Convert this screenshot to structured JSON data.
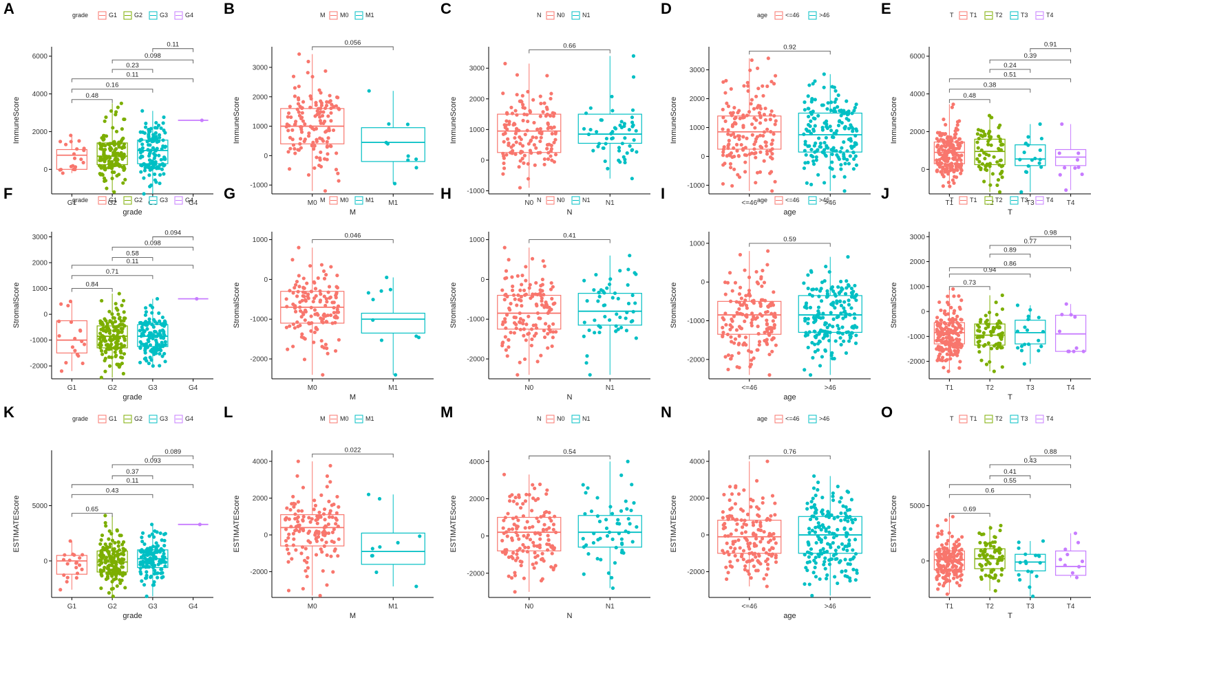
{
  "figure": {
    "colors": {
      "red": "#F8766D",
      "olive": "#7CAE00",
      "teal": "#00BFC4",
      "purple": "#C77CFF",
      "axis": "#000000",
      "bracket": "#555555"
    }
  },
  "chart_data": [
    {
      "letter": "A",
      "type": "boxplot",
      "xlabel": "grade",
      "ylabel": "ImmuneScore",
      "legend_title": "grade",
      "categories": [
        "G1",
        "G2",
        "G3",
        "G4"
      ],
      "colors": [
        "#F8766D",
        "#7CAE00",
        "#00BFC4",
        "#C77CFF"
      ],
      "ylim": [
        -1300,
        6500
      ],
      "yticks": [
        0,
        2000,
        4000,
        6000
      ],
      "boxes": [
        {
          "min": -200,
          "q1": 0,
          "median": 750,
          "q3": 1050,
          "max": 1800,
          "n": 20
        },
        {
          "min": -1200,
          "q1": 250,
          "median": 700,
          "q3": 1400,
          "max": 3500,
          "n": 150
        },
        {
          "min": -1300,
          "q1": 300,
          "median": 1000,
          "q3": 1550,
          "max": 3100,
          "n": 130
        },
        {
          "min": 2600,
          "q1": 2600,
          "median": 2600,
          "q3": 2600,
          "max": 2600,
          "n": 1
        }
      ],
      "comparisons": [
        {
          "from": 0,
          "to": 1,
          "p": "0.48",
          "y": 3700
        },
        {
          "from": 0,
          "to": 2,
          "p": "0.16",
          "y": 4250
        },
        {
          "from": 0,
          "to": 3,
          "p": "0.11",
          "y": 4800
        },
        {
          "from": 1,
          "to": 2,
          "p": "0.23",
          "y": 5300
        },
        {
          "from": 1,
          "to": 3,
          "p": "0.098",
          "y": 5800
        },
        {
          "from": 2,
          "to": 3,
          "p": "0.11",
          "y": 6400
        }
      ]
    },
    {
      "letter": "B",
      "type": "boxplot",
      "xlabel": "M",
      "ylabel": "ImmuneScore",
      "legend_title": "M",
      "categories": [
        "M0",
        "M1"
      ],
      "colors": [
        "#F8766D",
        "#00BFC4"
      ],
      "ylim": [
        -1300,
        3700
      ],
      "yticks": [
        -1000,
        0,
        1000,
        2000,
        3000
      ],
      "boxes": [
        {
          "min": -1200,
          "q1": 400,
          "median": 1000,
          "q3": 1600,
          "max": 3450,
          "n": 140
        },
        {
          "min": -950,
          "q1": -200,
          "median": 450,
          "q3": 950,
          "max": 2200,
          "n": 10
        }
      ],
      "comparisons": [
        {
          "from": 0,
          "to": 1,
          "p": "0.056",
          "y": 3700
        }
      ]
    },
    {
      "letter": "C",
      "type": "boxplot",
      "xlabel": "N",
      "ylabel": "ImmuneScore",
      "legend_title": "N",
      "categories": [
        "N0",
        "N1"
      ],
      "colors": [
        "#F8766D",
        "#00BFC4"
      ],
      "ylim": [
        -1100,
        3700
      ],
      "yticks": [
        -1000,
        0,
        1000,
        2000,
        3000
      ],
      "boxes": [
        {
          "min": -900,
          "q1": 250,
          "median": 950,
          "q3": 1500,
          "max": 3150,
          "n": 140
        },
        {
          "min": -600,
          "q1": 550,
          "median": 850,
          "q3": 1500,
          "max": 3400,
          "n": 55
        }
      ],
      "comparisons": [
        {
          "from": 0,
          "to": 1,
          "p": "0.66",
          "y": 3600
        }
      ]
    },
    {
      "letter": "D",
      "type": "boxplot",
      "xlabel": "age",
      "ylabel": "ImmuneScore",
      "legend_title": "age",
      "categories": [
        "<=46",
        ">46"
      ],
      "colors": [
        "#F8766D",
        "#00BFC4"
      ],
      "ylim": [
        -1300,
        3800
      ],
      "yticks": [
        -1000,
        0,
        1000,
        2000,
        3000
      ],
      "boxes": [
        {
          "min": -1200,
          "q1": 250,
          "median": 850,
          "q3": 1400,
          "max": 3400,
          "n": 160
        },
        {
          "min": -1200,
          "q1": 150,
          "median": 750,
          "q3": 1500,
          "max": 2850,
          "n": 180
        }
      ],
      "comparisons": [
        {
          "from": 0,
          "to": 1,
          "p": "0.92",
          "y": 3650
        }
      ]
    },
    {
      "letter": "E",
      "type": "boxplot",
      "xlabel": "T",
      "ylabel": "ImmuneScore",
      "legend_title": "T",
      "categories": [
        "T1",
        "T2",
        "T3",
        "T4"
      ],
      "colors": [
        "#F8766D",
        "#7CAE00",
        "#00BFC4",
        "#C77CFF"
      ],
      "ylim": [
        -1300,
        6500
      ],
      "yticks": [
        0,
        2000,
        4000,
        6000
      ],
      "boxes": [
        {
          "min": -900,
          "q1": 300,
          "median": 900,
          "q3": 1450,
          "max": 3450,
          "n": 180
        },
        {
          "min": -1200,
          "q1": 250,
          "median": 950,
          "q3": 1600,
          "max": 2850,
          "n": 70
        },
        {
          "min": -1200,
          "q1": 200,
          "median": 550,
          "q3": 1300,
          "max": 2400,
          "n": 18
        },
        {
          "min": -1100,
          "q1": 200,
          "median": 650,
          "q3": 1050,
          "max": 2400,
          "n": 10
        }
      ],
      "comparisons": [
        {
          "from": 0,
          "to": 1,
          "p": "0.48",
          "y": 3700
        },
        {
          "from": 0,
          "to": 2,
          "p": "0.38",
          "y": 4250
        },
        {
          "from": 0,
          "to": 3,
          "p": "0.51",
          "y": 4800
        },
        {
          "from": 1,
          "to": 2,
          "p": "0.24",
          "y": 5300
        },
        {
          "from": 1,
          "to": 3,
          "p": "0.39",
          "y": 5800
        },
        {
          "from": 2,
          "to": 3,
          "p": "0.91",
          "y": 6400
        }
      ]
    },
    {
      "letter": "F",
      "type": "boxplot",
      "xlabel": "grade",
      "ylabel": "StromalScore",
      "legend_title": "grade",
      "categories": [
        "G1",
        "G2",
        "G3",
        "G4"
      ],
      "colors": [
        "#F8766D",
        "#7CAE00",
        "#00BFC4",
        "#C77CFF"
      ],
      "ylim": [
        -2500,
        3200
      ],
      "yticks": [
        -2000,
        -1000,
        0,
        1000,
        2000,
        3000
      ],
      "boxes": [
        {
          "min": -2200,
          "q1": -1500,
          "median": -1000,
          "q3": -250,
          "max": 500,
          "n": 18
        },
        {
          "min": -2450,
          "q1": -1300,
          "median": -850,
          "q3": -450,
          "max": 800,
          "n": 150
        },
        {
          "min": -2000,
          "q1": -1250,
          "median": -850,
          "q3": -400,
          "max": 600,
          "n": 130
        },
        {
          "min": 600,
          "q1": 600,
          "median": 600,
          "q3": 600,
          "max": 600,
          "n": 1
        }
      ],
      "comparisons": [
        {
          "from": 0,
          "to": 1,
          "p": "0.84",
          "y": 1000
        },
        {
          "from": 0,
          "to": 2,
          "p": "0.71",
          "y": 1500
        },
        {
          "from": 0,
          "to": 3,
          "p": "0.11",
          "y": 1900
        },
        {
          "from": 1,
          "to": 2,
          "p": "0.58",
          "y": 2200
        },
        {
          "from": 1,
          "to": 3,
          "p": "0.098",
          "y": 2600
        },
        {
          "from": 2,
          "to": 3,
          "p": "0.094",
          "y": 3000
        }
      ]
    },
    {
      "letter": "G",
      "type": "boxplot",
      "xlabel": "M",
      "ylabel": "StromalScore",
      "legend_title": "M",
      "categories": [
        "M0",
        "M1"
      ],
      "colors": [
        "#F8766D",
        "#00BFC4"
      ],
      "ylim": [
        -2500,
        1200
      ],
      "yticks": [
        -2000,
        -1000,
        0,
        1000
      ],
      "boxes": [
        {
          "min": -2400,
          "q1": -1100,
          "median": -700,
          "q3": -300,
          "max": 800,
          "n": 140
        },
        {
          "min": -2400,
          "q1": -1350,
          "median": -1000,
          "q3": -850,
          "max": 50,
          "n": 10
        }
      ],
      "comparisons": [
        {
          "from": 0,
          "to": 1,
          "p": "0.046",
          "y": 1000
        }
      ]
    },
    {
      "letter": "H",
      "type": "boxplot",
      "xlabel": "N",
      "ylabel": "StromalScore",
      "legend_title": "N",
      "categories": [
        "N0",
        "N1"
      ],
      "colors": [
        "#F8766D",
        "#00BFC4"
      ],
      "ylim": [
        -2500,
        1200
      ],
      "yticks": [
        -2000,
        -1000,
        0,
        1000
      ],
      "boxes": [
        {
          "min": -2400,
          "q1": -1250,
          "median": -850,
          "q3": -400,
          "max": 800,
          "n": 140
        },
        {
          "min": -2400,
          "q1": -1150,
          "median": -800,
          "q3": -350,
          "max": 600,
          "n": 55
        }
      ],
      "comparisons": [
        {
          "from": 0,
          "to": 1,
          "p": "0.41",
          "y": 1000
        }
      ]
    },
    {
      "letter": "I",
      "type": "boxplot",
      "xlabel": "age",
      "ylabel": "StromalScore",
      "legend_title": "age",
      "categories": [
        "<=46",
        ">46"
      ],
      "colors": [
        "#F8766D",
        "#00BFC4"
      ],
      "ylim": [
        -2500,
        1300
      ],
      "yticks": [
        -2000,
        -1000,
        0,
        1000
      ],
      "boxes": [
        {
          "min": -2400,
          "q1": -1350,
          "median": -850,
          "q3": -500,
          "max": 800,
          "n": 160
        },
        {
          "min": -2400,
          "q1": -1300,
          "median": -850,
          "q3": -350,
          "max": 650,
          "n": 180
        }
      ],
      "comparisons": [
        {
          "from": 0,
          "to": 1,
          "p": "0.59",
          "y": 1000
        }
      ]
    },
    {
      "letter": "J",
      "type": "boxplot",
      "xlabel": "T",
      "ylabel": "StromalScore",
      "legend_title": "T",
      "categories": [
        "T1",
        "T2",
        "T3",
        "T4"
      ],
      "colors": [
        "#F8766D",
        "#7CAE00",
        "#00BFC4",
        "#C77CFF"
      ],
      "ylim": [
        -2700,
        3200
      ],
      "yticks": [
        -2000,
        -1000,
        0,
        1000,
        2000,
        3000
      ],
      "boxes": [
        {
          "min": -2400,
          "q1": -1300,
          "median": -850,
          "q3": -450,
          "max": 900,
          "n": 180
        },
        {
          "min": -2400,
          "q1": -1350,
          "median": -950,
          "q3": -500,
          "max": 650,
          "n": 70
        },
        {
          "min": -2100,
          "q1": -1300,
          "median": -850,
          "q3": -350,
          "max": 250,
          "n": 18
        },
        {
          "min": -1600,
          "q1": -1600,
          "median": -900,
          "q3": -150,
          "max": 300,
          "n": 10
        }
      ],
      "comparisons": [
        {
          "from": 0,
          "to": 1,
          "p": "0.73",
          "y": 1000
        },
        {
          "from": 0,
          "to": 2,
          "p": "0.94",
          "y": 1500
        },
        {
          "from": 0,
          "to": 3,
          "p": "0.86",
          "y": 1750
        },
        {
          "from": 1,
          "to": 2,
          "p": "0.89",
          "y": 2300
        },
        {
          "from": 1,
          "to": 3,
          "p": "0.77",
          "y": 2650
        },
        {
          "from": 2,
          "to": 3,
          "p": "0.98",
          "y": 3000
        }
      ]
    },
    {
      "letter": "K",
      "type": "boxplot",
      "xlabel": "grade",
      "ylabel": "ESTIMATEScore",
      "legend_title": "grade",
      "categories": [
        "G1",
        "G2",
        "G3",
        "G4"
      ],
      "colors": [
        "#F8766D",
        "#7CAE00",
        "#00BFC4",
        "#C77CFF"
      ],
      "ylim": [
        -3300,
        10000
      ],
      "yticks": [
        0,
        5000
      ],
      "boxes": [
        {
          "min": -2600,
          "q1": -1200,
          "median": 0,
          "q3": 500,
          "max": 1800,
          "n": 20
        },
        {
          "min": -3200,
          "q1": -1000,
          "median": -100,
          "q3": 900,
          "max": 4100,
          "n": 150
        },
        {
          "min": -3200,
          "q1": -600,
          "median": 200,
          "q3": 1000,
          "max": 3300,
          "n": 130
        },
        {
          "min": 3300,
          "q1": 3300,
          "median": 3300,
          "q3": 3300,
          "max": 3300,
          "n": 1
        }
      ],
      "comparisons": [
        {
          "from": 0,
          "to": 1,
          "p": "0.65",
          "y": 4300
        },
        {
          "from": 0,
          "to": 2,
          "p": "0.43",
          "y": 6000
        },
        {
          "from": 0,
          "to": 3,
          "p": "0.11",
          "y": 6900
        },
        {
          "from": 1,
          "to": 2,
          "p": "0.37",
          "y": 7700
        },
        {
          "from": 1,
          "to": 3,
          "p": "0.093",
          "y": 8700
        },
        {
          "from": 2,
          "to": 3,
          "p": "0.089",
          "y": 9500
        }
      ]
    },
    {
      "letter": "L",
      "type": "boxplot",
      "xlabel": "M",
      "ylabel": "ESTIMATEScore",
      "legend_title": "M",
      "categories": [
        "M0",
        "M1"
      ],
      "colors": [
        "#F8766D",
        "#00BFC4"
      ],
      "ylim": [
        -3400,
        4600
      ],
      "yticks": [
        -2000,
        0,
        2000,
        4000
      ],
      "boxes": [
        {
          "min": -3300,
          "q1": -600,
          "median": 400,
          "q3": 1100,
          "max": 4000,
          "n": 140
        },
        {
          "min": -2800,
          "q1": -1600,
          "median": -900,
          "q3": 100,
          "max": 2200,
          "n": 10
        }
      ],
      "comparisons": [
        {
          "from": 0,
          "to": 1,
          "p": "0.022",
          "y": 4400
        }
      ]
    },
    {
      "letter": "M",
      "type": "boxplot",
      "xlabel": "N",
      "ylabel": "ESTIMATEScore",
      "legend_title": "N",
      "categories": [
        "N0",
        "N1"
      ],
      "colors": [
        "#F8766D",
        "#00BFC4"
      ],
      "ylim": [
        -3300,
        4600
      ],
      "yticks": [
        -2000,
        0,
        2000,
        4000
      ],
      "boxes": [
        {
          "min": -3000,
          "q1": -800,
          "median": 200,
          "q3": 1000,
          "max": 3300,
          "n": 140
        },
        {
          "min": -2800,
          "q1": -600,
          "median": 200,
          "q3": 1100,
          "max": 4000,
          "n": 55
        }
      ],
      "comparisons": [
        {
          "from": 0,
          "to": 1,
          "p": "0.54",
          "y": 4300
        }
      ]
    },
    {
      "letter": "N",
      "type": "boxplot",
      "xlabel": "age",
      "ylabel": "ESTIMATEScore",
      "legend_title": "age",
      "categories": [
        "<=46",
        ">46"
      ],
      "colors": [
        "#F8766D",
        "#00BFC4"
      ],
      "ylim": [
        -3400,
        4600
      ],
      "yticks": [
        -2000,
        0,
        2000,
        4000
      ],
      "boxes": [
        {
          "min": -2800,
          "q1": -1000,
          "median": -100,
          "q3": 800,
          "max": 4000,
          "n": 160
        },
        {
          "min": -3300,
          "q1": -1000,
          "median": 0,
          "q3": 1000,
          "max": 3200,
          "n": 180
        }
      ],
      "comparisons": [
        {
          "from": 0,
          "to": 1,
          "p": "0.76",
          "y": 4300
        }
      ]
    },
    {
      "letter": "O",
      "type": "boxplot",
      "xlabel": "T",
      "ylabel": "ESTIMATEScore",
      "legend_title": "T",
      "categories": [
        "T1",
        "T2",
        "T3",
        "T4"
      ],
      "colors": [
        "#F8766D",
        "#7CAE00",
        "#00BFC4",
        "#C77CFF"
      ],
      "ylim": [
        -3300,
        10000
      ],
      "yticks": [
        0,
        5000
      ],
      "boxes": [
        {
          "min": -3000,
          "q1": -800,
          "median": 100,
          "q3": 900,
          "max": 4000,
          "n": 180
        },
        {
          "min": -2700,
          "q1": -700,
          "median": 200,
          "q3": 1100,
          "max": 3200,
          "n": 70
        },
        {
          "min": -3200,
          "q1": -900,
          "median": -100,
          "q3": 600,
          "max": 1800,
          "n": 18
        },
        {
          "min": -1500,
          "q1": -1300,
          "median": -500,
          "q3": 900,
          "max": 2500,
          "n": 10
        }
      ],
      "comparisons": [
        {
          "from": 0,
          "to": 1,
          "p": "0.69",
          "y": 4300
        },
        {
          "from": 0,
          "to": 2,
          "p": "0.6",
          "y": 6000
        },
        {
          "from": 0,
          "to": 3,
          "p": "0.55",
          "y": 6900
        },
        {
          "from": 1,
          "to": 2,
          "p": "0.41",
          "y": 7700
        },
        {
          "from": 1,
          "to": 3,
          "p": "0.43",
          "y": 8700
        },
        {
          "from": 2,
          "to": 3,
          "p": "0.88",
          "y": 9500
        }
      ]
    }
  ]
}
